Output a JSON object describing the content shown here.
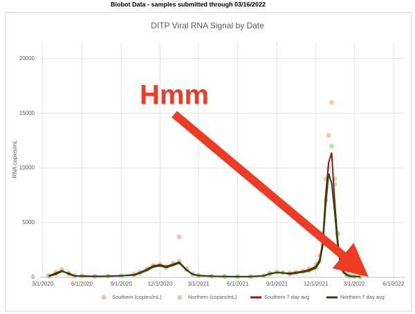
{
  "chart_data": {
    "type": "scatter-line",
    "subtitle": "Biobot Data - samples submitted through 03/16/2022",
    "title": "DITP Viral RNA Signal by Date",
    "y_label": "RNA copies/mL",
    "annotation": "Hmm",
    "grid": true,
    "legend": "bottom",
    "xlim": [
      "2020-02-24",
      "2022-06-27"
    ],
    "xticks": [
      {
        "value": "2020-03-01",
        "label": "3/1/2020"
      },
      {
        "value": "2020-06-01",
        "label": "6/1/2020"
      },
      {
        "value": "2020-09-01",
        "label": "9/1/2020"
      },
      {
        "value": "2020-12-01",
        "label": "12/1/2020"
      },
      {
        "value": "2021-03-01",
        "label": "3/1/2021"
      },
      {
        "value": "2021-06-01",
        "label": "6/1/2021"
      },
      {
        "value": "2021-09-01",
        "label": "9/1/2021"
      },
      {
        "value": "2021-12-01",
        "label": "12/1/2021"
      },
      {
        "value": "2022-03-01",
        "label": "3/1/2022"
      },
      {
        "value": "2022-06-01",
        "label": "6/1/2022"
      }
    ],
    "ylim": [
      0,
      21500
    ],
    "yticks": [
      0,
      5000,
      10000,
      15000,
      20000
    ],
    "x": [
      "2020-03-15",
      "2020-04-01",
      "2020-04-15",
      "2020-05-01",
      "2020-05-15",
      "2020-06-01",
      "2020-07-01",
      "2020-08-01",
      "2020-09-01",
      "2020-10-01",
      "2020-10-15",
      "2020-11-01",
      "2020-11-15",
      "2020-12-01",
      "2020-12-15",
      "2021-01-01",
      "2021-01-15",
      "2021-02-01",
      "2021-02-15",
      "2021-03-01",
      "2021-04-01",
      "2021-05-01",
      "2021-06-01",
      "2021-07-01",
      "2021-08-01",
      "2021-08-15",
      "2021-09-01",
      "2021-09-15",
      "2021-10-01",
      "2021-10-15",
      "2021-11-01",
      "2021-11-15",
      "2021-12-01",
      "2021-12-10",
      "2021-12-17",
      "2021-12-24",
      "2021-12-31",
      "2022-01-07",
      "2022-01-14",
      "2022-01-21",
      "2022-01-28",
      "2022-02-04",
      "2022-02-11",
      "2022-02-18",
      "2022-03-01",
      "2022-03-15"
    ],
    "series": [
      {
        "name": "Southern (copies/mL)",
        "kind": "scatter",
        "color": "#f4a57a",
        "values": [
          150,
          500,
          700,
          300,
          100,
          150,
          100,
          120,
          150,
          300,
          500,
          800,
          1100,
          1200,
          1000,
          1300,
          3700,
          800,
          300,
          200,
          120,
          90,
          70,
          80,
          150,
          300,
          500,
          400,
          400,
          500,
          600,
          800,
          1200,
          2000,
          4000,
          9000,
          13000,
          16000,
          9000,
          4000,
          1500,
          600,
          300,
          150,
          100,
          80
        ]
      },
      {
        "name": "Northern (copies/mL)",
        "kind": "scatter",
        "color": "#9fcf7f",
        "values": [
          100,
          300,
          600,
          400,
          150,
          100,
          80,
          100,
          150,
          200,
          400,
          700,
          1000,
          1100,
          900,
          1200,
          1500,
          700,
          300,
          150,
          100,
          80,
          60,
          70,
          150,
          400,
          500,
          450,
          300,
          400,
          500,
          600,
          900,
          1500,
          3000,
          7000,
          10000,
          12000,
          8500,
          4000,
          1500,
          500,
          200,
          100,
          80,
          60
        ]
      },
      {
        "name": "Southern 7 day avg",
        "kind": "line",
        "color": "#8b1a0a",
        "values": [
          120,
          400,
          600,
          300,
          120,
          130,
          100,
          110,
          140,
          250,
          450,
          750,
          1050,
          1150,
          1000,
          1200,
          1400,
          700,
          300,
          180,
          110,
          80,
          70,
          75,
          140,
          300,
          450,
          400,
          380,
          450,
          550,
          700,
          1000,
          1600,
          3200,
          7500,
          10500,
          11400,
          7000,
          3500,
          1200,
          500,
          250,
          130,
          90,
          70
        ]
      },
      {
        "name": "Northern 7 day avg",
        "kind": "line",
        "color": "#1e4d12",
        "values": [
          90,
          280,
          550,
          380,
          140,
          100,
          80,
          100,
          140,
          200,
          380,
          650,
          950,
          1050,
          900,
          1100,
          1300,
          650,
          280,
          150,
          100,
          75,
          60,
          70,
          140,
          350,
          450,
          420,
          300,
          380,
          480,
          580,
          850,
          1400,
          2800,
          6500,
          9500,
          8600,
          6000,
          3000,
          1100,
          450,
          200,
          100,
          75,
          60
        ]
      }
    ]
  }
}
